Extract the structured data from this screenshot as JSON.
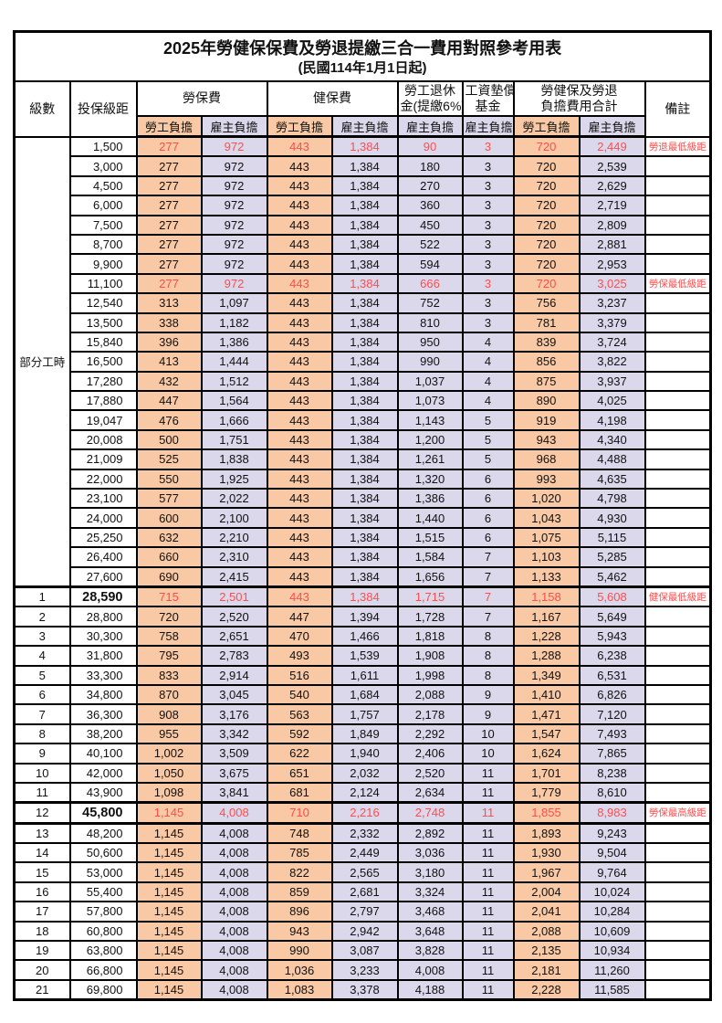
{
  "title": "2025年勞健保保費及勞退提繳三合一費用對照參考用表",
  "subtitle": "(民國114年1月1日起)",
  "colors": {
    "employee_bg": "#F8C9A4",
    "employer_bg": "#DBD8EC",
    "highlight_red": "#FF4D4D",
    "border": "#000000"
  },
  "header": {
    "level": "級數",
    "bracket": "投保級距",
    "labor_insurance": "勞保費",
    "health_insurance": "健保費",
    "pension_line1": "勞工退休",
    "pension_line2": "金(提繳6%)",
    "wage_fund_line1": "工資墊償",
    "wage_fund_line2": "基金",
    "total_line1": "勞健保及勞退",
    "total_line2": "負擔費用合計",
    "remark": "備註",
    "employee_share": "勞工負擔",
    "employer_share": "雇主負擔"
  },
  "part_time_label": "部分工時",
  "rows": [
    {
      "level": "",
      "bracket": "1,500",
      "values": [
        "277",
        "972",
        "443",
        "1,384",
        "90",
        "3",
        "720",
        "2,449"
      ],
      "remark": "勞退最低級距",
      "red": true
    },
    {
      "level": "",
      "bracket": "3,000",
      "values": [
        "277",
        "972",
        "443",
        "1,384",
        "180",
        "3",
        "720",
        "2,539"
      ],
      "remark": ""
    },
    {
      "level": "",
      "bracket": "4,500",
      "values": [
        "277",
        "972",
        "443",
        "1,384",
        "270",
        "3",
        "720",
        "2,629"
      ],
      "remark": ""
    },
    {
      "level": "",
      "bracket": "6,000",
      "values": [
        "277",
        "972",
        "443",
        "1,384",
        "360",
        "3",
        "720",
        "2,719"
      ],
      "remark": ""
    },
    {
      "level": "",
      "bracket": "7,500",
      "values": [
        "277",
        "972",
        "443",
        "1,384",
        "450",
        "3",
        "720",
        "2,809"
      ],
      "remark": ""
    },
    {
      "level": "",
      "bracket": "8,700",
      "values": [
        "277",
        "972",
        "443",
        "1,384",
        "522",
        "3",
        "720",
        "2,881"
      ],
      "remark": ""
    },
    {
      "level": "",
      "bracket": "9,900",
      "values": [
        "277",
        "972",
        "443",
        "1,384",
        "594",
        "3",
        "720",
        "2,953"
      ],
      "remark": ""
    },
    {
      "level": "",
      "bracket": "11,100",
      "values": [
        "277",
        "972",
        "443",
        "1,384",
        "666",
        "3",
        "720",
        "3,025"
      ],
      "remark": "勞保最低級距",
      "red": true
    },
    {
      "level": "",
      "bracket": "12,540",
      "values": [
        "313",
        "1,097",
        "443",
        "1,384",
        "752",
        "3",
        "756",
        "3,237"
      ],
      "remark": ""
    },
    {
      "level": "",
      "bracket": "13,500",
      "values": [
        "338",
        "1,182",
        "443",
        "1,384",
        "810",
        "3",
        "781",
        "3,379"
      ],
      "remark": ""
    },
    {
      "level": "",
      "bracket": "15,840",
      "values": [
        "396",
        "1,386",
        "443",
        "1,384",
        "950",
        "4",
        "839",
        "3,724"
      ],
      "remark": ""
    },
    {
      "level": "",
      "bracket": "16,500",
      "values": [
        "413",
        "1,444",
        "443",
        "1,384",
        "990",
        "4",
        "856",
        "3,822"
      ],
      "remark": ""
    },
    {
      "level": "",
      "bracket": "17,280",
      "values": [
        "432",
        "1,512",
        "443",
        "1,384",
        "1,037",
        "4",
        "875",
        "3,937"
      ],
      "remark": ""
    },
    {
      "level": "",
      "bracket": "17,880",
      "values": [
        "447",
        "1,564",
        "443",
        "1,384",
        "1,073",
        "4",
        "890",
        "4,025"
      ],
      "remark": ""
    },
    {
      "level": "",
      "bracket": "19,047",
      "values": [
        "476",
        "1,666",
        "443",
        "1,384",
        "1,143",
        "5",
        "919",
        "4,198"
      ],
      "remark": ""
    },
    {
      "level": "",
      "bracket": "20,008",
      "values": [
        "500",
        "1,751",
        "443",
        "1,384",
        "1,200",
        "5",
        "943",
        "4,340"
      ],
      "remark": ""
    },
    {
      "level": "",
      "bracket": "21,009",
      "values": [
        "525",
        "1,838",
        "443",
        "1,384",
        "1,261",
        "5",
        "968",
        "4,488"
      ],
      "remark": ""
    },
    {
      "level": "",
      "bracket": "22,000",
      "values": [
        "550",
        "1,925",
        "443",
        "1,384",
        "1,320",
        "6",
        "993",
        "4,635"
      ],
      "remark": ""
    },
    {
      "level": "",
      "bracket": "23,100",
      "values": [
        "577",
        "2,022",
        "443",
        "1,384",
        "1,386",
        "6",
        "1,020",
        "4,798"
      ],
      "remark": ""
    },
    {
      "level": "",
      "bracket": "24,000",
      "values": [
        "600",
        "2,100",
        "443",
        "1,384",
        "1,440",
        "6",
        "1,043",
        "4,930"
      ],
      "remark": ""
    },
    {
      "level": "",
      "bracket": "25,250",
      "values": [
        "632",
        "2,210",
        "443",
        "1,384",
        "1,515",
        "6",
        "1,075",
        "5,115"
      ],
      "remark": ""
    },
    {
      "level": "",
      "bracket": "26,400",
      "values": [
        "660",
        "2,310",
        "443",
        "1,384",
        "1,584",
        "7",
        "1,103",
        "5,285"
      ],
      "remark": ""
    },
    {
      "level": "",
      "bracket": "27,600",
      "values": [
        "690",
        "2,415",
        "443",
        "1,384",
        "1,656",
        "7",
        "1,133",
        "5,462"
      ],
      "remark": ""
    },
    {
      "level": "1",
      "bracket": "28,590",
      "values": [
        "715",
        "2,501",
        "443",
        "1,384",
        "1,715",
        "7",
        "1,158",
        "5,608"
      ],
      "remark": "健保最低級距",
      "red": true,
      "bold": true,
      "thick_top": true
    },
    {
      "level": "2",
      "bracket": "28,800",
      "values": [
        "720",
        "2,520",
        "447",
        "1,394",
        "1,728",
        "7",
        "1,167",
        "5,649"
      ],
      "remark": ""
    },
    {
      "level": "3",
      "bracket": "30,300",
      "values": [
        "758",
        "2,651",
        "470",
        "1,466",
        "1,818",
        "8",
        "1,228",
        "5,943"
      ],
      "remark": ""
    },
    {
      "level": "4",
      "bracket": "31,800",
      "values": [
        "795",
        "2,783",
        "493",
        "1,539",
        "1,908",
        "8",
        "1,288",
        "6,238"
      ],
      "remark": ""
    },
    {
      "level": "5",
      "bracket": "33,300",
      "values": [
        "833",
        "2,914",
        "516",
        "1,611",
        "1,998",
        "8",
        "1,349",
        "6,531"
      ],
      "remark": ""
    },
    {
      "level": "6",
      "bracket": "34,800",
      "values": [
        "870",
        "3,045",
        "540",
        "1,684",
        "2,088",
        "9",
        "1,410",
        "6,826"
      ],
      "remark": ""
    },
    {
      "level": "7",
      "bracket": "36,300",
      "values": [
        "908",
        "3,176",
        "563",
        "1,757",
        "2,178",
        "9",
        "1,471",
        "7,120"
      ],
      "remark": ""
    },
    {
      "level": "8",
      "bracket": "38,200",
      "values": [
        "955",
        "3,342",
        "592",
        "1,849",
        "2,292",
        "10",
        "1,547",
        "7,493"
      ],
      "remark": ""
    },
    {
      "level": "9",
      "bracket": "40,100",
      "values": [
        "1,002",
        "3,509",
        "622",
        "1,940",
        "2,406",
        "10",
        "1,624",
        "7,865"
      ],
      "remark": ""
    },
    {
      "level": "10",
      "bracket": "42,000",
      "values": [
        "1,050",
        "3,675",
        "651",
        "2,032",
        "2,520",
        "11",
        "1,701",
        "8,238"
      ],
      "remark": ""
    },
    {
      "level": "11",
      "bracket": "43,900",
      "values": [
        "1,098",
        "3,841",
        "681",
        "2,124",
        "2,634",
        "11",
        "1,779",
        "8,610"
      ],
      "remark": ""
    },
    {
      "level": "12",
      "bracket": "45,800",
      "values": [
        "1,145",
        "4,008",
        "710",
        "2,216",
        "2,748",
        "11",
        "1,855",
        "8,983"
      ],
      "remark": "勞保最高級距",
      "red": true,
      "bold": true,
      "thick_top": true,
      "thick_bottom": true
    },
    {
      "level": "13",
      "bracket": "48,200",
      "values": [
        "1,145",
        "4,008",
        "748",
        "2,332",
        "2,892",
        "11",
        "1,893",
        "9,243"
      ],
      "remark": ""
    },
    {
      "level": "14",
      "bracket": "50,600",
      "values": [
        "1,145",
        "4,008",
        "785",
        "2,449",
        "3,036",
        "11",
        "1,930",
        "9,504"
      ],
      "remark": ""
    },
    {
      "level": "15",
      "bracket": "53,000",
      "values": [
        "1,145",
        "4,008",
        "822",
        "2,565",
        "3,180",
        "11",
        "1,967",
        "9,764"
      ],
      "remark": ""
    },
    {
      "level": "16",
      "bracket": "55,400",
      "values": [
        "1,145",
        "4,008",
        "859",
        "2,681",
        "3,324",
        "11",
        "2,004",
        "10,024"
      ],
      "remark": ""
    },
    {
      "level": "17",
      "bracket": "57,800",
      "values": [
        "1,145",
        "4,008",
        "896",
        "2,797",
        "3,468",
        "11",
        "2,041",
        "10,284"
      ],
      "remark": ""
    },
    {
      "level": "18",
      "bracket": "60,800",
      "values": [
        "1,145",
        "4,008",
        "943",
        "2,942",
        "3,648",
        "11",
        "2,088",
        "10,609"
      ],
      "remark": ""
    },
    {
      "level": "19",
      "bracket": "63,800",
      "values": [
        "1,145",
        "4,008",
        "990",
        "3,087",
        "3,828",
        "11",
        "2,135",
        "10,934"
      ],
      "remark": ""
    },
    {
      "level": "20",
      "bracket": "66,800",
      "values": [
        "1,145",
        "4,008",
        "1,036",
        "3,233",
        "4,008",
        "11",
        "2,181",
        "11,260"
      ],
      "remark": ""
    },
    {
      "level": "21",
      "bracket": "69,800",
      "values": [
        "1,145",
        "4,008",
        "1,083",
        "3,378",
        "4,188",
        "11",
        "2,228",
        "11,585"
      ],
      "remark": ""
    }
  ]
}
